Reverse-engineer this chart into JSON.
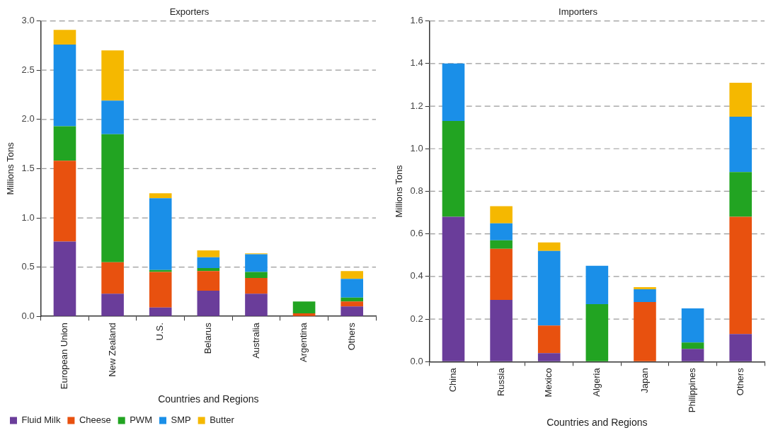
{
  "chart_data": [
    {
      "type": "bar",
      "title": "Exporters",
      "xlabel": "Countries and Regions",
      "ylabel": "Millions Tons",
      "stacked": true,
      "grid": "y",
      "legend": "bottom",
      "categories": [
        "European Union",
        "New Zealand",
        "U.S.",
        "Belarus",
        "Australia",
        "Argentina",
        "Others"
      ],
      "ylim": [
        0,
        3
      ],
      "yticks": [
        {
          "value": 0,
          "label": "0.0"
        },
        {
          "value": 0.5,
          "label": "0.5"
        },
        {
          "value": 1,
          "label": "1.0"
        },
        {
          "value": 1.5,
          "label": "1.5"
        },
        {
          "value": 2,
          "label": "2.0"
        },
        {
          "value": 2.5,
          "label": "2.5"
        },
        {
          "value": 3,
          "label": "3.0"
        }
      ],
      "series": [
        {
          "name": "Fluid Milk",
          "color": "#6a3d9a",
          "values": [
            0.76,
            0.23,
            0.09,
            0.26,
            0.23,
            0,
            0.1
          ]
        },
        {
          "name": "Cheese",
          "color": "#e8510f",
          "values": [
            0.82,
            0.32,
            0.36,
            0.2,
            0.16,
            0.03,
            0.05
          ]
        },
        {
          "name": "PWM",
          "color": "#22a422",
          "values": [
            0.35,
            1.3,
            0.02,
            0.03,
            0.06,
            0.12,
            0.04
          ]
        },
        {
          "name": "SMP",
          "color": "#1a8fe8",
          "values": [
            0.83,
            0.34,
            0.73,
            0.11,
            0.18,
            0,
            0.19
          ]
        },
        {
          "name": "Butter",
          "color": "#f5b800",
          "values": [
            0.15,
            0.51,
            0.05,
            0.07,
            0.01,
            0,
            0.08
          ]
        }
      ]
    },
    {
      "type": "bar",
      "title": "Importers",
      "xlabel": "Countries and Regions",
      "ylabel": "Millions Tons",
      "stacked": true,
      "grid": "y",
      "categories": [
        "China",
        "Russia",
        "Mexico",
        "Algeria",
        "Japan",
        "Philippines",
        "Others"
      ],
      "ylim": [
        0,
        1.6
      ],
      "yticks": [
        {
          "value": 0,
          "label": "0.0"
        },
        {
          "value": 0.2,
          "label": "0.2"
        },
        {
          "value": 0.4,
          "label": "0.4"
        },
        {
          "value": 0.6,
          "label": "0.6"
        },
        {
          "value": 0.8,
          "label": "0.8"
        },
        {
          "value": 1,
          "label": "1.0"
        },
        {
          "value": 1.2,
          "label": "1.2"
        },
        {
          "value": 1.4,
          "label": "1.4"
        },
        {
          "value": 1.6,
          "label": "1.6"
        }
      ],
      "series": [
        {
          "color": "#6a3d9a",
          "values": [
            0.68,
            0.29,
            0.04,
            0,
            0,
            0.06,
            0.13
          ]
        },
        {
          "color": "#e8510f",
          "values": [
            0,
            0.24,
            0.13,
            0,
            0.28,
            0,
            0.55
          ]
        },
        {
          "color": "#22a422",
          "values": [
            0.45,
            0.04,
            0,
            0.27,
            0,
            0.03,
            0.21
          ]
        },
        {
          "color": "#1a8fe8",
          "values": [
            0.27,
            0.08,
            0.35,
            0.18,
            0.06,
            0.16,
            0.26
          ]
        },
        {
          "color": "#f5b800",
          "values": [
            0,
            0.08,
            0.04,
            0,
            0.01,
            0,
            0.16
          ]
        }
      ]
    }
  ]
}
